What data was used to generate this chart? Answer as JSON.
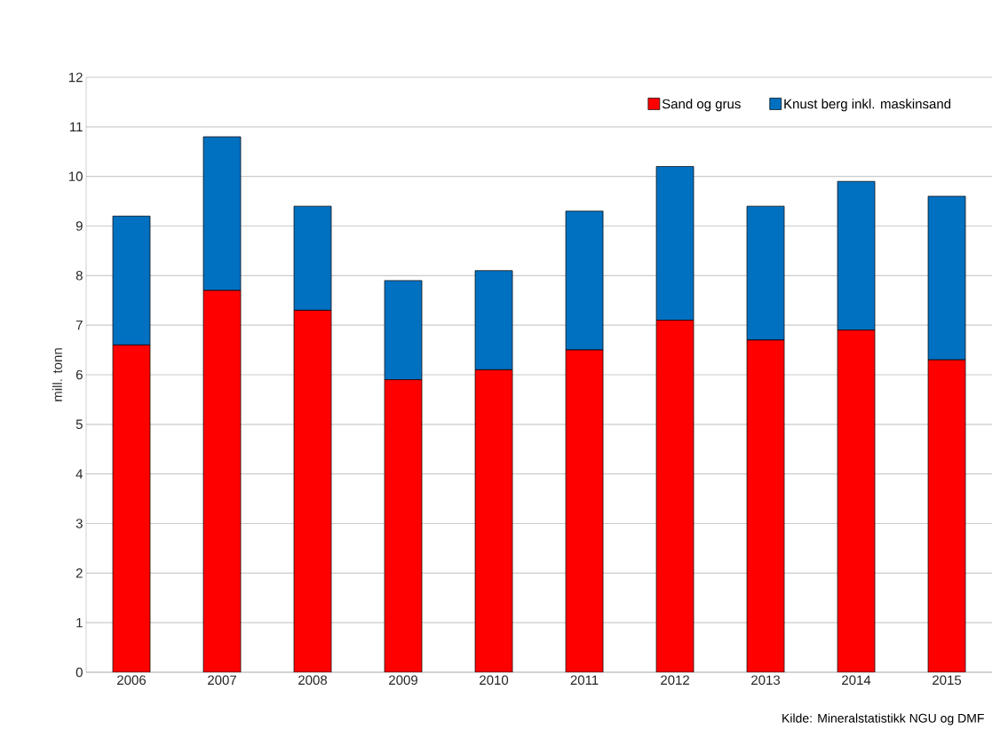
{
  "chart_data": {
    "type": "bar",
    "stacked": true,
    "ylabel": "mill. tonn",
    "categories": [
      "2006",
      "2007",
      "2008",
      "2009",
      "2010",
      "2011",
      "2012",
      "2013",
      "2014",
      "2015"
    ],
    "series": [
      {
        "name": "Sand og grus",
        "color": "#ff0000",
        "values": [
          6.6,
          7.7,
          7.3,
          5.9,
          6.1,
          6.5,
          7.1,
          6.7,
          6.9,
          6.3
        ]
      },
      {
        "name": "Knust berg inkl. maskinsand",
        "color": "#0070c0",
        "values": [
          2.6,
          3.1,
          2.1,
          2.0,
          2.0,
          2.8,
          3.1,
          2.7,
          3.0,
          3.3
        ]
      }
    ],
    "ylim": [
      0,
      12
    ],
    "yticks": [
      0,
      1,
      2,
      3,
      4,
      5,
      6,
      7,
      8,
      9,
      10,
      11,
      12
    ],
    "grid": "y",
    "legend": "top right",
    "annotations": [
      "Kilde: Mineralstatistikk NGU og DMF"
    ]
  }
}
